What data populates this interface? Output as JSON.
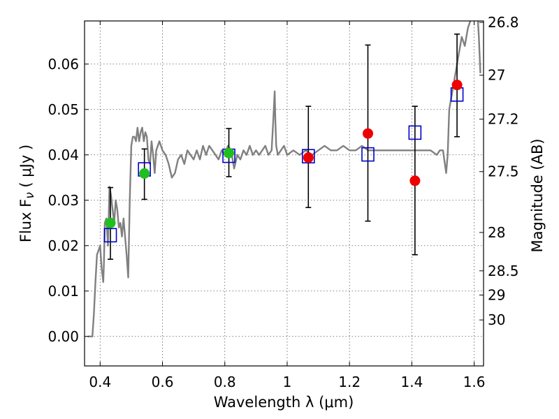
{
  "chart_data": {
    "type": "scatter",
    "title": "",
    "xlabel": "Wavelength  λ (μm)",
    "ylabel": "Flux  F_ν  ( μJy )",
    "ylabel_right": "Magnitude (AB)",
    "xlim": [
      0.35,
      1.63
    ],
    "ylim": [
      -0.0065,
      0.0695
    ],
    "grid": true,
    "x_ticks": [
      {
        "value": 0.4,
        "label": "0.4"
      },
      {
        "value": 0.6,
        "label": "0.6"
      },
      {
        "value": 0.8,
        "label": "0.8"
      },
      {
        "value": 1.0,
        "label": "1"
      },
      {
        "value": 1.2,
        "label": "1.2"
      },
      {
        "value": 1.4,
        "label": "1.4"
      },
      {
        "value": 1.6,
        "label": "1.6"
      }
    ],
    "y_ticks": [
      {
        "value": 0.0,
        "label": "0.00"
      },
      {
        "value": 0.01,
        "label": "0.01"
      },
      {
        "value": 0.02,
        "label": "0.02"
      },
      {
        "value": 0.03,
        "label": "0.03"
      },
      {
        "value": 0.04,
        "label": "0.04"
      },
      {
        "value": 0.05,
        "label": "0.05"
      },
      {
        "value": 0.06,
        "label": "0.06"
      }
    ],
    "right_ticks": [
      {
        "value": 26.8,
        "label": "26.8"
      },
      {
        "value": 27.0,
        "label": "27"
      },
      {
        "value": 27.2,
        "label": "27.2"
      },
      {
        "value": 27.5,
        "label": "27.5"
      },
      {
        "value": 28.0,
        "label": "28"
      },
      {
        "value": 28.5,
        "label": "28.5"
      },
      {
        "value": 29.0,
        "label": "29"
      },
      {
        "value": 30.0,
        "label": "30"
      }
    ],
    "colors": {
      "template": "#808080",
      "green": "#1fbf1f",
      "red": "#ee0000",
      "model_box": "#0000cc",
      "errorbar": "#000000"
    },
    "template_spectrum": {
      "x": [
        0.36,
        0.375,
        0.38,
        0.385,
        0.39,
        0.395,
        0.4,
        0.405,
        0.41,
        0.412,
        0.415,
        0.42,
        0.425,
        0.43,
        0.435,
        0.44,
        0.445,
        0.45,
        0.455,
        0.46,
        0.465,
        0.47,
        0.475,
        0.48,
        0.485,
        0.49,
        0.495,
        0.5,
        0.505,
        0.51,
        0.515,
        0.52,
        0.525,
        0.53,
        0.535,
        0.54,
        0.545,
        0.55,
        0.555,
        0.56,
        0.565,
        0.57,
        0.575,
        0.58,
        0.59,
        0.6,
        0.61,
        0.62,
        0.63,
        0.64,
        0.65,
        0.66,
        0.67,
        0.68,
        0.69,
        0.7,
        0.71,
        0.72,
        0.73,
        0.74,
        0.75,
        0.76,
        0.77,
        0.78,
        0.79,
        0.8,
        0.81,
        0.82,
        0.83,
        0.84,
        0.85,
        0.86,
        0.87,
        0.88,
        0.89,
        0.9,
        0.91,
        0.92,
        0.93,
        0.94,
        0.95,
        0.955,
        0.96,
        0.962,
        0.965,
        0.97,
        0.98,
        0.99,
        1.0,
        1.02,
        1.04,
        1.06,
        1.08,
        1.1,
        1.12,
        1.14,
        1.16,
        1.18,
        1.2,
        1.22,
        1.24,
        1.26,
        1.28,
        1.3,
        1.32,
        1.34,
        1.36,
        1.38,
        1.4,
        1.42,
        1.44,
        1.46,
        1.48,
        1.49,
        1.5,
        1.51,
        1.515,
        1.52,
        1.53,
        1.54,
        1.55,
        1.56,
        1.57,
        1.58,
        1.59,
        1.6,
        1.605,
        1.61,
        1.615,
        1.62
      ],
      "y": [
        0.0,
        0.0,
        0.005,
        0.012,
        0.018,
        0.019,
        0.02,
        0.015,
        0.012,
        0.016,
        0.025,
        0.026,
        0.02,
        0.033,
        0.031,
        0.028,
        0.025,
        0.03,
        0.028,
        0.024,
        0.025,
        0.022,
        0.026,
        0.022,
        0.018,
        0.013,
        0.03,
        0.042,
        0.044,
        0.044,
        0.043,
        0.046,
        0.043,
        0.045,
        0.046,
        0.043,
        0.045,
        0.044,
        0.039,
        0.038,
        0.043,
        0.04,
        0.036,
        0.041,
        0.043,
        0.041,
        0.04,
        0.038,
        0.035,
        0.036,
        0.039,
        0.04,
        0.038,
        0.041,
        0.04,
        0.039,
        0.041,
        0.039,
        0.042,
        0.04,
        0.042,
        0.041,
        0.04,
        0.039,
        0.041,
        0.04,
        0.042,
        0.041,
        0.037,
        0.04,
        0.039,
        0.041,
        0.04,
        0.042,
        0.04,
        0.041,
        0.04,
        0.041,
        0.042,
        0.04,
        0.041,
        0.047,
        0.054,
        0.048,
        0.042,
        0.04,
        0.041,
        0.042,
        0.04,
        0.041,
        0.04,
        0.041,
        0.04,
        0.041,
        0.042,
        0.041,
        0.041,
        0.042,
        0.041,
        0.041,
        0.042,
        0.041,
        0.041,
        0.041,
        0.041,
        0.041,
        0.041,
        0.041,
        0.041,
        0.041,
        0.041,
        0.041,
        0.04,
        0.041,
        0.041,
        0.036,
        0.04,
        0.05,
        0.054,
        0.058,
        0.062,
        0.066,
        0.064,
        0.068,
        0.07,
        0.072,
        0.07,
        0.072,
        0.066,
        0.058
      ]
    },
    "green_points": {
      "x": [
        0.433,
        0.542,
        0.813
      ],
      "y": [
        0.025,
        0.0359,
        0.0404
      ],
      "err_low": [
        0.017,
        0.0302,
        0.0352
      ],
      "err_high": [
        0.0328,
        0.0413,
        0.0458
      ]
    },
    "red_points": {
      "x": [
        1.068,
        1.259,
        1.41,
        1.545
      ],
      "y": [
        0.0394,
        0.0447,
        0.0343,
        0.0554
      ],
      "err_low": [
        0.0284,
        0.0254,
        0.018,
        0.044
      ],
      "err_high": [
        0.0507,
        0.0642,
        0.0507,
        0.0666
      ]
    },
    "model_boxes": {
      "x": [
        0.433,
        0.542,
        0.813,
        1.068,
        1.259,
        1.41,
        1.545
      ],
      "y": [
        0.0223,
        0.0368,
        0.0398,
        0.0397,
        0.0401,
        0.0449,
        0.0533
      ]
    }
  }
}
